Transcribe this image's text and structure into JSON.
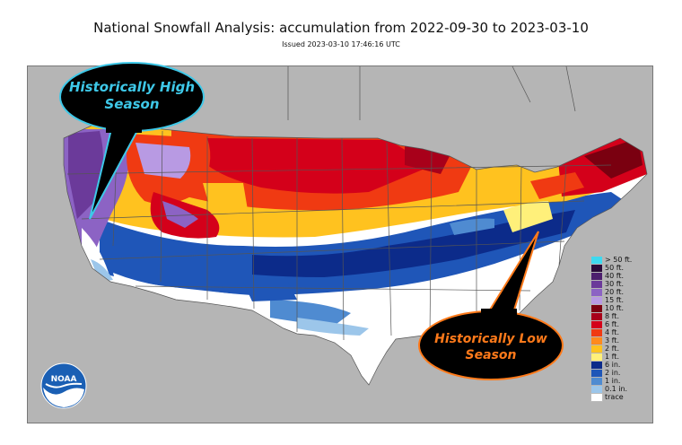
{
  "header": {
    "title": "National Snowfall Analysis: accumulation from 2022-09-30 to 2023-03-10",
    "subtitle": "Issued 2023-03-10 17:46:16 UTC"
  },
  "callouts": {
    "high": {
      "line1": "Historically High",
      "line2": "Season",
      "text_color": "#3ec8e8",
      "bg": "#000000",
      "border": "#3ec8e8"
    },
    "low": {
      "line1": "Historically Low",
      "line2": "Season",
      "text_color": "#ff7a1a",
      "bg": "#000000",
      "border": "#ff7a1a"
    }
  },
  "legend": {
    "items": [
      {
        "label": "> 50 ft.",
        "color": "#3fd9ef"
      },
      {
        "label": "50 ft.",
        "color": "#2a0a3a"
      },
      {
        "label": "40 ft.",
        "color": "#4d1f6e"
      },
      {
        "label": "30 ft.",
        "color": "#6b3a9a"
      },
      {
        "label": "20 ft.",
        "color": "#8c63c4"
      },
      {
        "label": "15 ft.",
        "color": "#b89ae3"
      },
      {
        "label": "10 ft.",
        "color": "#7a0010"
      },
      {
        "label": "8 ft.",
        "color": "#a8001a"
      },
      {
        "label": "6 ft.",
        "color": "#d4001a"
      },
      {
        "label": "4 ft.",
        "color": "#f03a12"
      },
      {
        "label": "3 ft.",
        "color": "#ff8a1e"
      },
      {
        "label": "2 ft.",
        "color": "#ffc21f"
      },
      {
        "label": "1 ft.",
        "color": "#fff07a"
      },
      {
        "label": "6 in.",
        "color": "#0c2b8a"
      },
      {
        "label": "2 in.",
        "color": "#1f56b8"
      },
      {
        "label": "1 in.",
        "color": "#4f8bd1"
      },
      {
        "label": "0.1 in.",
        "color": "#9cc6ea"
      },
      {
        "label": "trace",
        "color": "#ffffff"
      }
    ]
  },
  "logo": {
    "text": "NOAA",
    "icon": "noaa-logo"
  },
  "colors": {
    "land_outside": "#b5b5b5",
    "water": "#b5b5b5",
    "boundary": "#555555"
  }
}
